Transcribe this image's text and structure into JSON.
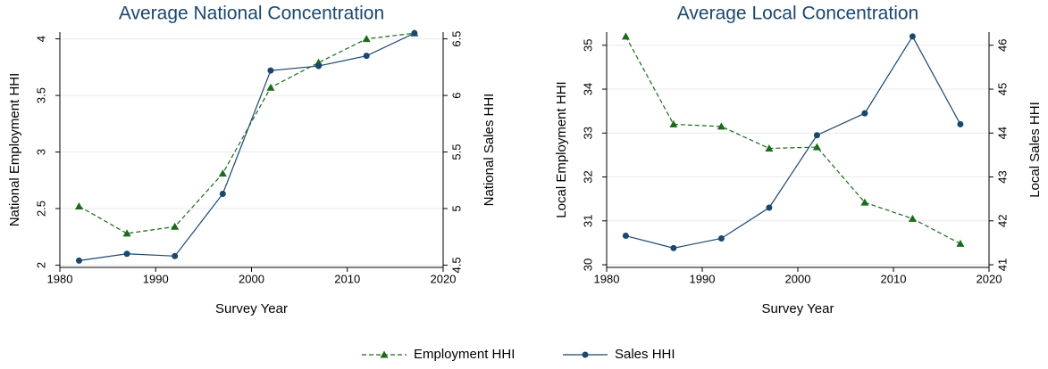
{
  "chart_data": [
    {
      "type": "line",
      "title": "Average National Concentration",
      "x_label": "Survey Year",
      "y_label": "National Employment HHI",
      "y2_label": "National Sales HHI",
      "x": [
        1982,
        1987,
        1992,
        1997,
        2002,
        2007,
        2012,
        2017
      ],
      "xlim": [
        1980,
        2020
      ],
      "xticks": [
        1980,
        1990,
        2000,
        2010,
        2020
      ],
      "ylim": [
        1.98,
        4.06
      ],
      "yticks": [
        2,
        2.5,
        3,
        3.5,
        4
      ],
      "y2lim": [
        4.48,
        6.56
      ],
      "y2ticks": [
        4.5,
        5,
        5.5,
        6,
        6.5
      ],
      "grid": true,
      "series": [
        {
          "name": "Employment HHI",
          "color": "#1a6b1a",
          "dash": "dashed",
          "marker": "triangle",
          "values": [
            2.52,
            2.28,
            2.34,
            2.81,
            3.57,
            3.79,
            4.0,
            4.05
          ]
        },
        {
          "name": "Sales HHI",
          "color": "#1a476f",
          "dash": "solid",
          "marker": "circle",
          "axis": "y2",
          "values": [
            4.54,
            4.6,
            4.58,
            5.13,
            6.22,
            6.26,
            6.35,
            6.55
          ]
        }
      ]
    },
    {
      "type": "line",
      "title": "Average Local Concentration",
      "x_label": "Survey Year",
      "y_label": "Local Employment HHI",
      "y2_label": "Local Sales HHI",
      "x": [
        1982,
        1987,
        1992,
        1997,
        2002,
        2007,
        2012,
        2017
      ],
      "xlim": [
        1980,
        2020
      ],
      "xticks": [
        1980,
        1990,
        2000,
        2010,
        2020
      ],
      "ylim": [
        29.94,
        35.3
      ],
      "yticks": [
        30,
        31,
        32,
        33,
        34,
        35
      ],
      "y2lim": [
        40.94,
        46.3
      ],
      "y2ticks": [
        41,
        42,
        43,
        44,
        45,
        46
      ],
      "grid": true,
      "series": [
        {
          "name": "Employment HHI",
          "color": "#1a6b1a",
          "dash": "dashed",
          "marker": "triangle",
          "values": [
            35.2,
            33.2,
            33.15,
            32.65,
            32.68,
            31.42,
            31.05,
            30.48
          ]
        },
        {
          "name": "Sales HHI",
          "color": "#1a476f",
          "dash": "solid",
          "marker": "circle",
          "axis": "y2",
          "values": [
            41.66,
            41.38,
            41.6,
            42.3,
            43.95,
            44.45,
            46.2,
            44.2
          ]
        }
      ]
    }
  ]
}
